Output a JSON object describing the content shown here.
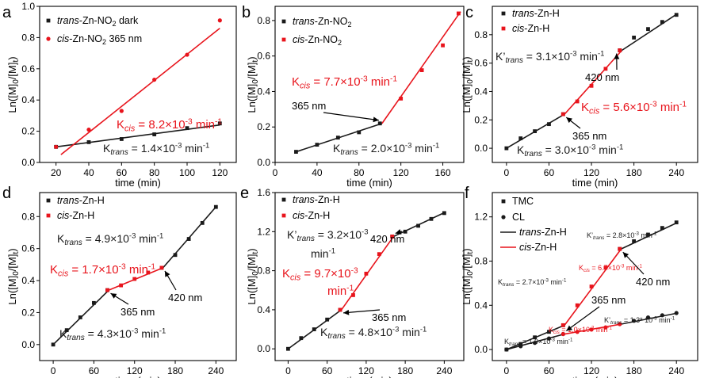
{
  "colors": {
    "black": "#1a1a1a",
    "red": "#e8141c"
  },
  "chart_data": [
    {
      "panel": "a",
      "type": "scatter",
      "xlabel": "time (min)",
      "ylabel": "Ln([M]0/[M]t)",
      "xlim": [
        10,
        130
      ],
      "ylim": [
        0,
        1.0
      ],
      "xticks": [
        "20",
        "40",
        "60",
        "80",
        "100",
        "120"
      ],
      "yticks": [
        "0.0",
        "0.2",
        "0.4",
        "0.6",
        "0.8",
        "1.0"
      ],
      "legend": [
        {
          "marker": "square",
          "color": "black",
          "italic": "trans",
          "text": "-Zn-NO₂ dark"
        },
        {
          "marker": "circle",
          "color": "red",
          "italic": "cis",
          "text": "-Zn-NO₂  365 nm"
        }
      ],
      "series": [
        {
          "color": "black",
          "marker": "square",
          "x": [
            20,
            40,
            60,
            80,
            100,
            120
          ],
          "y": [
            0.1,
            0.13,
            0.15,
            0.18,
            0.22,
            0.25
          ]
        },
        {
          "color": "red",
          "marker": "circle",
          "x": [
            20,
            40,
            60,
            80,
            100,
            120
          ],
          "y": [
            0.1,
            0.21,
            0.33,
            0.53,
            0.69,
            0.91
          ]
        }
      ],
      "fits": [
        {
          "color": "black",
          "x": [
            20,
            120
          ],
          "y": [
            0.1,
            0.24
          ]
        },
        {
          "color": "red",
          "x": [
            23,
            120
          ],
          "y": [
            0.05,
            0.86
          ]
        }
      ],
      "labels": [
        {
          "color": "red",
          "text": "K",
          "sub": "cis",
          "rest": " = 8.2×10",
          "sup": "-3",
          "tail": " min",
          "sup2": "-1"
        },
        {
          "color": "black",
          "text": "K",
          "sub": "trans",
          "rest": " = 1.4×10",
          "sup": "-3",
          "tail": " min",
          "sup2": "-1"
        }
      ],
      "annotations": []
    },
    {
      "panel": "b",
      "type": "scatter",
      "xlabel": "time (min)",
      "ylabel": "Ln([M]0/[M]t)",
      "xlim": [
        0,
        180
      ],
      "ylim": [
        0,
        0.88
      ],
      "xticks": [
        "0",
        "40",
        "80",
        "120",
        "160"
      ],
      "yticks": [
        "0.0",
        "0.2",
        "0.4",
        "0.6",
        "0.8"
      ],
      "legend": [
        {
          "marker": "square",
          "color": "black",
          "italic": "trans",
          "text": "-Zn-NO₂"
        },
        {
          "marker": "square",
          "color": "red",
          "italic": "cis",
          "text": "-Zn-NO₂"
        }
      ],
      "series": [
        {
          "color": "black",
          "marker": "square",
          "x": [
            20,
            40,
            60,
            80,
            100
          ],
          "y": [
            0.06,
            0.1,
            0.14,
            0.17,
            0.22
          ]
        },
        {
          "color": "red",
          "marker": "square",
          "x": [
            120,
            140,
            160,
            175
          ],
          "y": [
            0.36,
            0.52,
            0.66,
            0.84
          ]
        }
      ],
      "fits": [
        {
          "color": "black",
          "x": [
            20,
            102
          ],
          "y": [
            0.06,
            0.22
          ]
        },
        {
          "color": "red",
          "x": [
            102,
            177
          ],
          "y": [
            0.22,
            0.85
          ]
        }
      ],
      "labels": [
        {
          "color": "red",
          "text": "K",
          "sub": "cis",
          "rest": " = 7.7×10",
          "sup": "-3",
          "tail": " min",
          "sup2": "-1"
        },
        {
          "color": "black",
          "text": "K",
          "sub": "trans",
          "rest": " = 2.0×10",
          "sup": "-3",
          "tail": " min",
          "sup2": "-1"
        }
      ],
      "annotations": [
        "365 nm"
      ]
    },
    {
      "panel": "c",
      "type": "scatter",
      "xlabel": "time (min)",
      "ylabel": "Ln([M]0/[M]t)",
      "xlim": [
        -20,
        270
      ],
      "ylim": [
        -0.1,
        1.0
      ],
      "xticks": [
        "0",
        "60",
        "120",
        "180",
        "240"
      ],
      "yticks": [
        "0.0",
        "0.2",
        "0.4",
        "0.6",
        "0.8"
      ],
      "legend": [
        {
          "marker": "square",
          "color": "black",
          "italic": "trans",
          "text": "-Zn-H"
        },
        {
          "marker": "square",
          "color": "red",
          "italic": "cis",
          "text": "-Zn-H"
        }
      ],
      "series": [
        {
          "color": "black",
          "marker": "square",
          "x": [
            0,
            20,
            40,
            60,
            80,
            160,
            180,
            200,
            220,
            240
          ],
          "y": [
            0.0,
            0.07,
            0.12,
            0.17,
            0.24,
            0.69,
            0.78,
            0.84,
            0.89,
            0.94
          ]
        },
        {
          "color": "red",
          "marker": "square",
          "x": [
            80,
            100,
            120,
            140,
            160
          ],
          "y": [
            0.24,
            0.33,
            0.44,
            0.56,
            0.69
          ]
        }
      ],
      "fits": [
        {
          "color": "black",
          "x": [
            0,
            82
          ],
          "y": [
            0.0,
            0.24
          ]
        },
        {
          "color": "red",
          "x": [
            82,
            163
          ],
          "y": [
            0.24,
            0.69
          ]
        },
        {
          "color": "black",
          "x": [
            163,
            242
          ],
          "y": [
            0.69,
            0.95
          ]
        }
      ],
      "labels": [
        {
          "color": "black",
          "text": "K’",
          "sub": "trans",
          "rest": " = 3.1×10",
          "sup": "-3",
          "tail": " min",
          "sup2": "-1"
        },
        {
          "color": "red",
          "text": "K",
          "sub": "cis",
          "rest": " = 5.6×10",
          "sup": "-3",
          "tail": " min",
          "sup2": "-1"
        },
        {
          "color": "black",
          "text": "K",
          "sub": "trans",
          "rest": " = 3.0×10",
          "sup": "-3",
          "tail": " min",
          "sup2": "-1"
        }
      ],
      "annotations": [
        "420 nm",
        "365 nm"
      ]
    },
    {
      "panel": "d",
      "type": "scatter",
      "xlabel": "time (min)",
      "ylabel": "Ln([M]0/[M]t)",
      "xlim": [
        -20,
        270
      ],
      "ylim": [
        -0.1,
        0.95
      ],
      "xticks": [
        "0",
        "60",
        "120",
        "180",
        "240"
      ],
      "yticks": [
        "0.0",
        "0.2",
        "0.4",
        "0.6",
        "0.8"
      ],
      "legend": [
        {
          "marker": "square",
          "color": "black",
          "italic": "trans",
          "text": "-Zn-H"
        },
        {
          "marker": "square",
          "color": "red",
          "italic": "cis",
          "text": "-Zn-H"
        }
      ],
      "series": [
        {
          "color": "black",
          "marker": "square",
          "x": [
            0,
            20,
            40,
            60,
            80,
            160,
            180,
            200,
            220,
            240
          ],
          "y": [
            0.0,
            0.09,
            0.17,
            0.26,
            0.34,
            0.48,
            0.56,
            0.66,
            0.76,
            0.86
          ]
        },
        {
          "color": "red",
          "marker": "square",
          "x": [
            80,
            100,
            120,
            140,
            160
          ],
          "y": [
            0.34,
            0.37,
            0.41,
            0.45,
            0.48
          ]
        }
      ],
      "fits": [
        {
          "color": "black",
          "x": [
            0,
            82
          ],
          "y": [
            0.0,
            0.34
          ]
        },
        {
          "color": "red",
          "x": [
            82,
            162
          ],
          "y": [
            0.34,
            0.48
          ]
        },
        {
          "color": "black",
          "x": [
            162,
            242
          ],
          "y": [
            0.48,
            0.87
          ]
        }
      ],
      "labels": [
        {
          "color": "black",
          "text": "K",
          "sub": "trans",
          "rest": " = 4.9×10",
          "sup": "-3",
          "tail": " min",
          "sup2": "-1"
        },
        {
          "color": "red",
          "text": "K",
          "sub": "cis",
          "rest": " = 1.7×10",
          "sup": "-3",
          "tail": " min",
          "sup2": "-1"
        },
        {
          "color": "black",
          "text": "K",
          "sub": "trans",
          "rest": " = 4.3×10",
          "sup": "-3",
          "tail": " min",
          "sup2": "-1"
        }
      ],
      "annotations": [
        "365 nm",
        "420 nm"
      ]
    },
    {
      "panel": "e",
      "type": "scatter",
      "xlabel": "time (min)",
      "ylabel": "Ln([M]0/[M]t)",
      "xlim": [
        -20,
        270
      ],
      "ylim": [
        -0.12,
        1.6
      ],
      "xticks": [
        "0",
        "60",
        "120",
        "180",
        "240"
      ],
      "yticks": [
        "0.0",
        "0.4",
        "0.8",
        "1.2",
        "1.6"
      ],
      "legend": [
        {
          "marker": "square",
          "color": "black",
          "italic": "trans",
          "text": "-Zn-H"
        },
        {
          "marker": "square",
          "color": "red",
          "italic": "cis",
          "text": "-Zn-H"
        }
      ],
      "series": [
        {
          "color": "black",
          "marker": "square",
          "x": [
            0,
            20,
            40,
            60,
            80,
            160,
            180,
            200,
            220,
            240
          ],
          "y": [
            0.0,
            0.11,
            0.2,
            0.3,
            0.4,
            1.15,
            1.2,
            1.26,
            1.33,
            1.39
          ]
        },
        {
          "color": "red",
          "marker": "square",
          "x": [
            80,
            100,
            120,
            140,
            160
          ],
          "y": [
            0.4,
            0.55,
            0.77,
            0.97,
            1.15
          ]
        }
      ],
      "fits": [
        {
          "color": "black",
          "x": [
            0,
            82
          ],
          "y": [
            0.0,
            0.4
          ]
        },
        {
          "color": "red",
          "x": [
            82,
            162
          ],
          "y": [
            0.4,
            1.15
          ]
        },
        {
          "color": "black",
          "x": [
            162,
            242
          ],
          "y": [
            1.15,
            1.4
          ]
        }
      ],
      "labels": [
        {
          "color": "black",
          "text": "K’",
          "sub": "trans",
          "rest": " = 3.2×10",
          "sup": "-3",
          "tail": "",
          "sup2": ""
        },
        {
          "color": "black",
          "text": "min",
          "sub": "",
          "rest": "",
          "sup": "-1",
          "tail": "",
          "sup2": ""
        },
        {
          "color": "red",
          "text": "K",
          "sub": "cis",
          "rest": " = 9.7×10",
          "sup": "-3",
          "tail": "",
          "sup2": ""
        },
        {
          "color": "red",
          "text": "min",
          "sub": "",
          "rest": "",
          "sup": "-1",
          "tail": "",
          "sup2": ""
        },
        {
          "color": "black",
          "text": "K",
          "sub": "trans",
          "rest": " = 4.8×10",
          "sup": "-3",
          "tail": " min",
          "sup2": "-1"
        }
      ],
      "annotations": [
        "420 nm",
        "365 nm"
      ]
    },
    {
      "panel": "f",
      "type": "scatter",
      "xlabel": "time (min)",
      "ylabel": "Ln([M]0/[M]t)",
      "xlim": [
        -20,
        270
      ],
      "ylim": [
        -0.1,
        1.42
      ],
      "xticks": [
        "0",
        "60",
        "120",
        "180",
        "240"
      ],
      "yticks": [
        "0.0",
        "0.4",
        "0.8",
        "1.2"
      ],
      "legend": [
        {
          "marker": "square",
          "color": "black",
          "italic": "",
          "text": "TMC"
        },
        {
          "marker": "circle",
          "color": "black",
          "italic": "",
          "text": "CL"
        },
        {
          "marker": "line",
          "color": "black",
          "italic": "trans",
          "text": "-Zn-H"
        },
        {
          "marker": "line",
          "color": "red",
          "italic": "cis",
          "text": "-Zn-H"
        }
      ],
      "series": [
        {
          "color": "black",
          "marker": "square",
          "x": [
            0,
            20,
            40,
            60,
            80,
            160,
            180,
            200,
            220,
            240
          ],
          "y": [
            0.0,
            0.05,
            0.11,
            0.16,
            0.22,
            0.91,
            0.98,
            1.04,
            1.1,
            1.15
          ]
        },
        {
          "color": "red",
          "marker": "square",
          "x": [
            80,
            100,
            120,
            140,
            160
          ],
          "y": [
            0.22,
            0.4,
            0.57,
            0.74,
            0.91
          ]
        },
        {
          "color": "black",
          "marker": "circle",
          "x": [
            0,
            20,
            40,
            60,
            80,
            160,
            180,
            200,
            220,
            240
          ],
          "y": [
            0.0,
            0.03,
            0.06,
            0.1,
            0.14,
            0.23,
            0.26,
            0.29,
            0.31,
            0.33
          ]
        },
        {
          "color": "red",
          "marker": "circle",
          "x": [
            80,
            100,
            120,
            140,
            160
          ],
          "y": [
            0.14,
            0.16,
            0.18,
            0.2,
            0.23
          ]
        }
      ],
      "fits": [
        {
          "color": "black",
          "x": [
            0,
            82
          ],
          "y": [
            0.0,
            0.22
          ]
        },
        {
          "color": "red",
          "x": [
            82,
            162
          ],
          "y": [
            0.22,
            0.91
          ]
        },
        {
          "color": "black",
          "x": [
            162,
            242
          ],
          "y": [
            0.91,
            1.15
          ]
        },
        {
          "color": "black",
          "x": [
            0,
            82
          ],
          "y": [
            0.0,
            0.14
          ]
        },
        {
          "color": "red",
          "x": [
            82,
            162
          ],
          "y": [
            0.14,
            0.23
          ]
        },
        {
          "color": "black",
          "x": [
            162,
            242
          ],
          "y": [
            0.23,
            0.33
          ]
        }
      ],
      "labels": [
        {
          "color": "black",
          "text": "K’",
          "sub": "trans",
          "rest": " = 2.8×10",
          "sup": "-3",
          "tail": " min",
          "sup2": "-1"
        },
        {
          "color": "red",
          "text": "K",
          "sub": "cis",
          "rest": " = 6.7×10",
          "sup": "-3",
          "tail": " min",
          "sup2": "-1"
        },
        {
          "color": "black",
          "text": "K",
          "sub": "trans",
          "rest": " = 2.7×10",
          "sup": "-3",
          "tail": " min",
          "sup2": "-1"
        },
        {
          "color": "red",
          "text": "K",
          "sub": "cis",
          "rest": " = 1.0×10",
          "sup": "-3",
          "tail": " min",
          "sup2": "-1"
        },
        {
          "color": "black",
          "text": "K’",
          "sub": "trans",
          "rest": " = 1.3* 10",
          "sup": "-3",
          "tail": " min",
          "sup2": "-1"
        },
        {
          "color": "black",
          "text": "K",
          "sub": "trans",
          "rest": " = 1.9×10",
          "sup": "-3",
          "tail": " min",
          "sup2": "-1"
        }
      ],
      "annotations": [
        "420 nm",
        "365 nm"
      ]
    }
  ]
}
